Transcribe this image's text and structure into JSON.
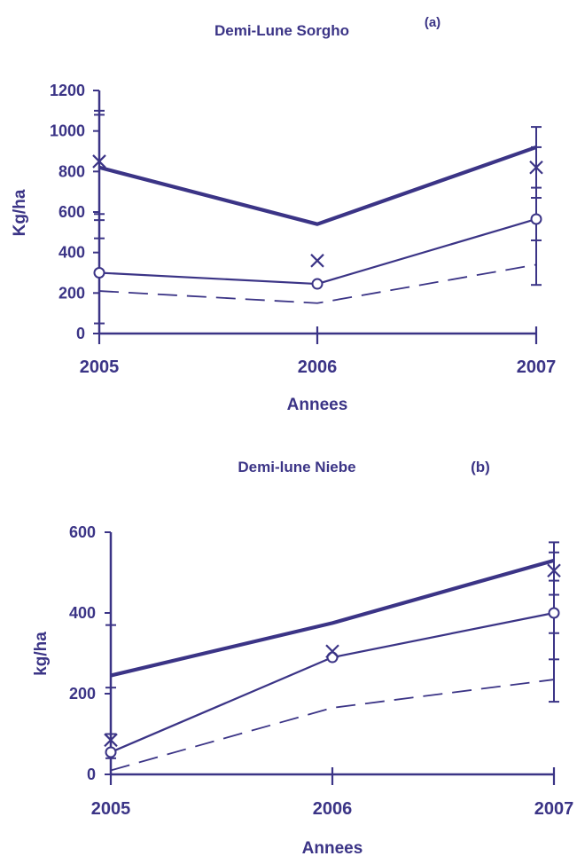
{
  "colors": {
    "ink": "#3b3486",
    "background": "#ffffff"
  },
  "chart_data": [
    {
      "type": "line",
      "title": "Demi-Lune Sorgho",
      "panel_label": "(a)",
      "xlabel": "Annees",
      "ylabel": "Kg/ha",
      "categories": [
        "2005",
        "2006",
        "2007"
      ],
      "ylim": [
        0,
        1200
      ],
      "yticks": [
        0,
        200,
        400,
        600,
        800,
        1000,
        1200
      ],
      "grid": false,
      "series": [
        {
          "values": [
            820,
            540,
            920
          ],
          "style": "thick"
        },
        {
          "values": [
            300,
            245,
            565
          ],
          "style": "thin",
          "marker": "circle"
        },
        {
          "values": [
            210,
            150,
            340
          ],
          "style": "dashed"
        },
        {
          "values": [
            850,
            360,
            820
          ],
          "style": "none",
          "marker": "x"
        }
      ],
      "error_bars": [
        {
          "x": "2005",
          "values": [
            1100,
            1080,
            590,
            560,
            470,
            50
          ]
        },
        {
          "x": "2007",
          "values": [
            1020,
            920,
            720,
            670,
            460,
            240
          ]
        }
      ]
    },
    {
      "type": "line",
      "title": "Demi-lune Niebe",
      "panel_label": "(b)",
      "xlabel": "Annees",
      "ylabel": "kg/ha",
      "categories": [
        "2005",
        "2006",
        "2007"
      ],
      "ylim": [
        0,
        600
      ],
      "yticks": [
        0,
        200,
        400,
        600
      ],
      "grid": false,
      "series": [
        {
          "values": [
            245,
            375,
            530
          ],
          "style": "thick"
        },
        {
          "values": [
            55,
            290,
            400
          ],
          "style": "thin",
          "marker": "circle"
        },
        {
          "values": [
            10,
            165,
            235
          ],
          "style": "dashed"
        },
        {
          "values": [
            85,
            305,
            505
          ],
          "style": "none",
          "marker": "x"
        }
      ],
      "error_bars": [
        {
          "x": "2005",
          "values": [
            370,
            215,
            100,
            40
          ]
        },
        {
          "x": "2007",
          "values": [
            575,
            550,
            480,
            445,
            350,
            285,
            180
          ]
        }
      ]
    }
  ]
}
